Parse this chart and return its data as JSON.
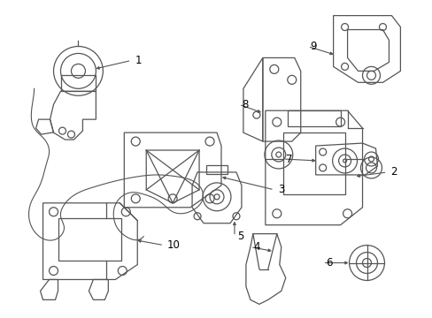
{
  "bg_color": "#ffffff",
  "line_color": "#555555",
  "text_color": "#000000",
  "fig_width": 4.89,
  "fig_height": 3.6,
  "dpi": 100,
  "font_size": 8.5,
  "lw": 0.9
}
